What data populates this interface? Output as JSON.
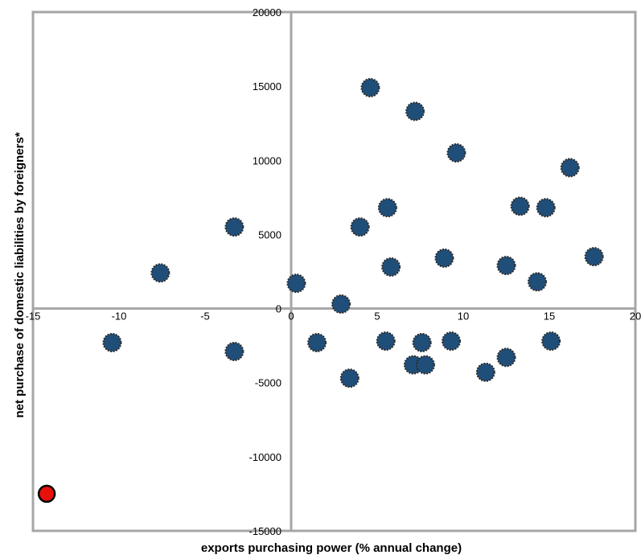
{
  "chart_data": {
    "type": "scatter",
    "xlabel": "exports purchasing power (% annual change)",
    "ylabel": "net purchase of domestic liabilities by foreigners*",
    "xlim": [
      -15,
      20
    ],
    "ylim": [
      -15000,
      20000
    ],
    "x_ticks": [
      "-15",
      "-10",
      "-5",
      "0",
      "5",
      "10",
      "15",
      "20"
    ],
    "y_ticks": [
      "-15000",
      "-10000",
      "-5000",
      "0",
      "5000",
      "10000",
      "15000",
      "20000"
    ],
    "grid": false,
    "legend": "none",
    "series": [
      {
        "color": "#1f4e79",
        "points": [
          {
            "x": 4.6,
            "y": 14900
          },
          {
            "x": 7.2,
            "y": 13300
          },
          {
            "x": 9.6,
            "y": 10500
          },
          {
            "x": 16.2,
            "y": 9500
          },
          {
            "x": 13.3,
            "y": 6900
          },
          {
            "x": 14.8,
            "y": 6800
          },
          {
            "x": 5.6,
            "y": 6800
          },
          {
            "x": 4.0,
            "y": 5500
          },
          {
            "x": -3.3,
            "y": 5500
          },
          {
            "x": 17.6,
            "y": 3500
          },
          {
            "x": 8.9,
            "y": 3400
          },
          {
            "x": 12.5,
            "y": 2900
          },
          {
            "x": 5.8,
            "y": 2800
          },
          {
            "x": -7.6,
            "y": 2400
          },
          {
            "x": 14.3,
            "y": 1800
          },
          {
            "x": 0.3,
            "y": 1700
          },
          {
            "x": 2.9,
            "y": 300
          },
          {
            "x": -10.4,
            "y": -2300
          },
          {
            "x": 1.5,
            "y": -2300
          },
          {
            "x": 5.5,
            "y": -2200
          },
          {
            "x": 7.6,
            "y": -2300
          },
          {
            "x": 9.3,
            "y": -2200
          },
          {
            "x": 15.1,
            "y": -2200
          },
          {
            "x": -3.3,
            "y": -2900
          },
          {
            "x": 12.5,
            "y": -3300
          },
          {
            "x": 7.1,
            "y": -3800
          },
          {
            "x": 7.8,
            "y": -3800
          },
          {
            "x": 11.3,
            "y": -4300
          },
          {
            "x": 3.4,
            "y": -4700
          }
        ]
      },
      {
        "color": "#e8100b",
        "points": [
          {
            "x": -14.2,
            "y": -12500
          }
        ]
      }
    ]
  }
}
